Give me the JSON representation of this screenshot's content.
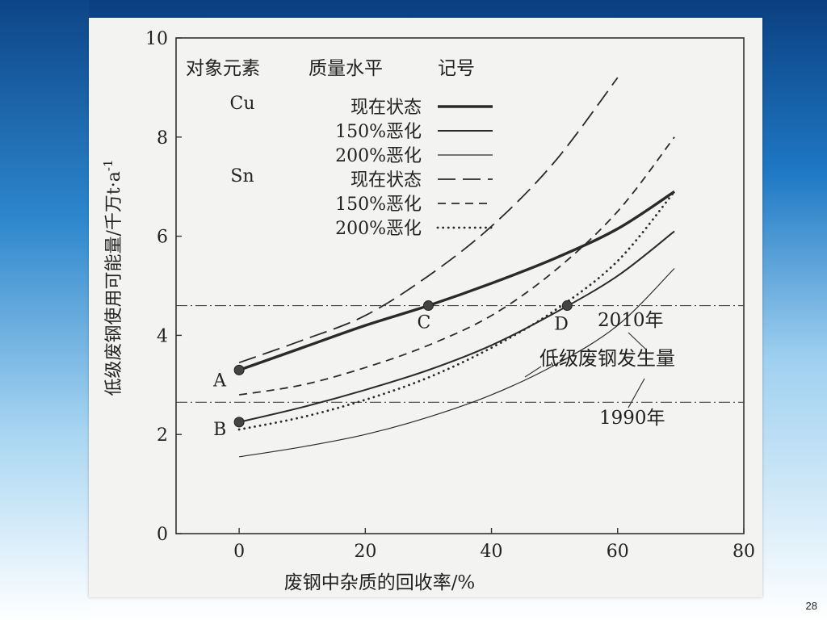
{
  "page_number": "28",
  "chart_data": {
    "type": "line",
    "xlabel": "废钢中杂质的回收率/%",
    "ylabel": "低级废钢使用可能量/千万t·a",
    "ylabel_superscript": "-1",
    "xlim": [
      -10,
      80
    ],
    "ylim": [
      0,
      10
    ],
    "x_ticks": [
      0,
      20,
      40,
      60,
      80
    ],
    "y_ticks": [
      0,
      2,
      4,
      6,
      8,
      10
    ],
    "grid": false,
    "legend": {
      "headers": [
        "对象元素",
        "质量水平",
        "记号"
      ],
      "entries": [
        {
          "element": "Cu",
          "level": "现在状态"
        },
        {
          "element": "",
          "level": "150%恶化"
        },
        {
          "element": "",
          "level": "200%恶化"
        },
        {
          "element": "Sn",
          "level": "现在状态"
        },
        {
          "element": "",
          "level": "150%恶化"
        },
        {
          "element": "",
          "level": "200%恶化"
        }
      ]
    },
    "series": [
      {
        "element": "Cu",
        "level": "现在状态",
        "style": "solid-thick",
        "x": [
          0,
          10,
          20,
          30,
          40,
          50,
          60,
          69
        ],
        "y": [
          3.3,
          3.75,
          4.2,
          4.6,
          5.05,
          5.55,
          6.15,
          6.9
        ]
      },
      {
        "element": "Cu",
        "level": "150%恶化",
        "style": "solid",
        "x": [
          0,
          10,
          20,
          30,
          40,
          50,
          60,
          69
        ],
        "y": [
          2.25,
          2.55,
          2.9,
          3.3,
          3.8,
          4.45,
          5.2,
          6.1
        ]
      },
      {
        "element": "Cu",
        "level": "200%恶化",
        "style": "solid-thin",
        "x": [
          0,
          10,
          20,
          30,
          40,
          50,
          60,
          69
        ],
        "y": [
          1.55,
          1.75,
          2.0,
          2.35,
          2.8,
          3.4,
          4.2,
          5.35
        ]
      },
      {
        "element": "Sn",
        "level": "现在状态",
        "style": "long-dash",
        "x": [
          0,
          10,
          20,
          30,
          40,
          50,
          60
        ],
        "y": [
          3.45,
          3.9,
          4.4,
          5.2,
          6.2,
          7.5,
          9.2
        ]
      },
      {
        "element": "Sn",
        "level": "150%恶化",
        "style": "dash",
        "x": [
          0,
          10,
          20,
          30,
          40,
          50,
          60,
          69
        ],
        "y": [
          2.8,
          3.0,
          3.35,
          3.8,
          4.4,
          5.3,
          6.5,
          8.0
        ]
      },
      {
        "element": "Sn",
        "level": "200%恶化",
        "style": "dotted",
        "x": [
          0,
          10,
          20,
          30,
          40,
          50,
          60,
          69
        ],
        "y": [
          2.1,
          2.35,
          2.7,
          3.15,
          3.75,
          4.5,
          5.5,
          6.9
        ]
      }
    ],
    "reference_lines": [
      {
        "y": 4.6,
        "label": "2010年"
      },
      {
        "y": 2.65,
        "label": "1990年"
      }
    ],
    "reference_label": "低级废钢发生量",
    "points": [
      {
        "label": "A",
        "x": 0,
        "y": 3.3
      },
      {
        "label": "B",
        "x": 0,
        "y": 2.25
      },
      {
        "label": "C",
        "x": 30,
        "y": 4.6
      },
      {
        "label": "D",
        "x": 52,
        "y": 4.6
      }
    ]
  }
}
